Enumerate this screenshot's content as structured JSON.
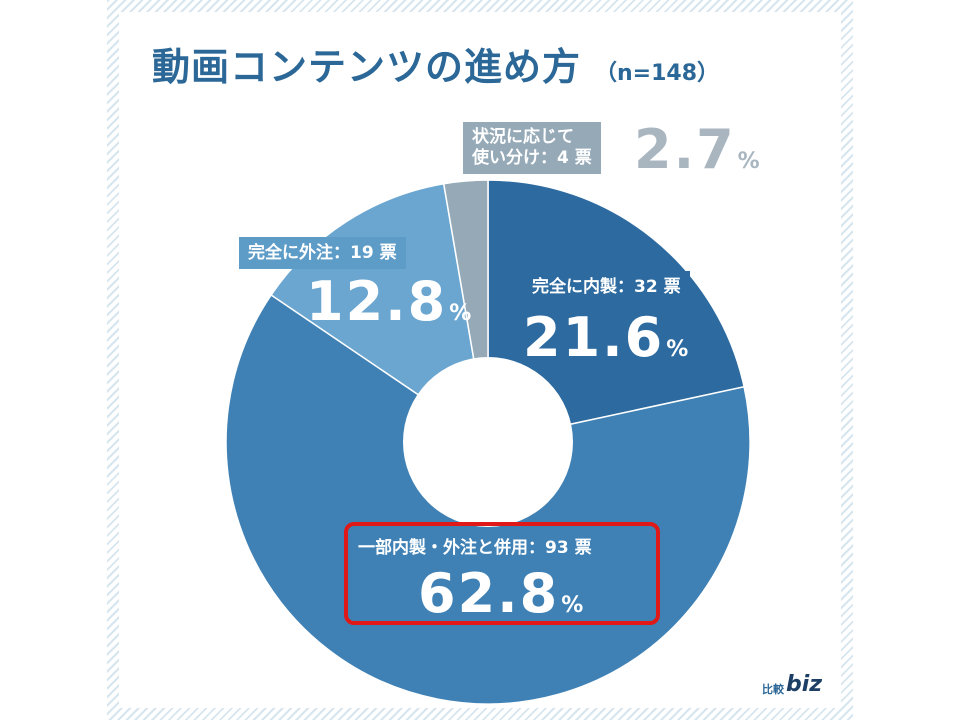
{
  "title": "動画コンテンツの進め方",
  "sample": "（n=148）",
  "chart_data": {
    "type": "pie",
    "title": "動画コンテンツの進め方",
    "n": 148,
    "slices": [
      {
        "label": "完全に内製：32 票",
        "pct": "21.6",
        "unit": "%",
        "value": 21.6,
        "color": "#2c6aa0"
      },
      {
        "label": "一部内製・外注と併用：93 票",
        "pct": "62.8",
        "unit": "%",
        "value": 62.8,
        "color": "#3f81b5"
      },
      {
        "label": "完全に外注：19 票",
        "pct": "12.8",
        "unit": "%",
        "value": 12.8,
        "color": "#6aa6d0"
      },
      {
        "label_lines": [
          "状況に応じて",
          "使い分け：4 票"
        ],
        "pct": "2.7",
        "unit": "%",
        "value": 2.7,
        "color": "#95a9b7"
      }
    ],
    "highlighted_slice": "一部内製・外注と併用：93 票"
  },
  "logo": {
    "jp": "比較",
    "en": "biz"
  }
}
